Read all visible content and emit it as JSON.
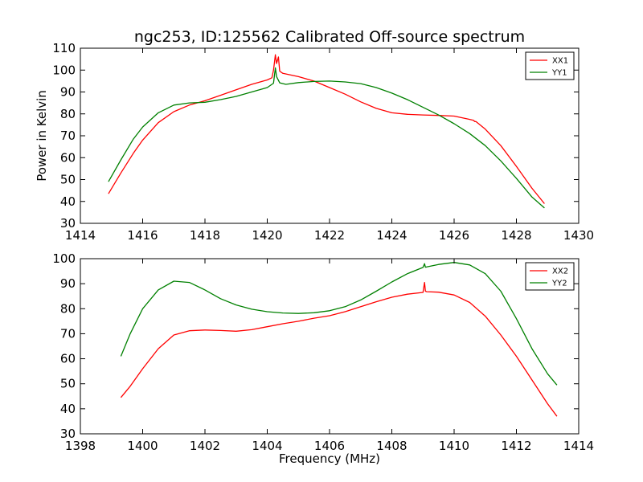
{
  "figure": {
    "title": "ngc253, ID:125562 Calibrated Off-source spectrum",
    "ylabel": "Power in Kelvin",
    "xlabel": "Frequency (MHz)"
  },
  "chart_data": [
    {
      "type": "line",
      "xlim": [
        1414,
        1430
      ],
      "ylim": [
        30,
        110
      ],
      "xticks": [
        1414,
        1416,
        1418,
        1420,
        1422,
        1424,
        1426,
        1428,
        1430
      ],
      "yticks": [
        30,
        40,
        50,
        60,
        70,
        80,
        90,
        100,
        110
      ],
      "legend_placement": "top-right",
      "grid": false,
      "series": [
        {
          "name": "XX1",
          "color": "#ff0000",
          "x": [
            1414.9,
            1415.3,
            1415.7,
            1416.0,
            1416.5,
            1417.0,
            1417.5,
            1418.0,
            1418.5,
            1419.0,
            1419.5,
            1420.0,
            1420.15,
            1420.2,
            1420.26,
            1420.3,
            1420.36,
            1420.4,
            1420.5,
            1421.0,
            1421.5,
            1422.0,
            1422.5,
            1423.0,
            1423.5,
            1424.0,
            1424.5,
            1425.0,
            1425.5,
            1426.0,
            1426.5,
            1426.63,
            1426.66,
            1426.7,
            1427.0,
            1427.5,
            1428.0,
            1428.5,
            1428.9
          ],
          "y": [
            43.5,
            53,
            62,
            68,
            76,
            81,
            84,
            86,
            88.5,
            91,
            93.5,
            95.5,
            96.5,
            100,
            107,
            103,
            106,
            99.5,
            98.5,
            97,
            95,
            92,
            89,
            85.5,
            82.5,
            80.5,
            79.8,
            79.5,
            79.3,
            79,
            77.5,
            77,
            76.5,
            76.5,
            73,
            65.5,
            56,
            46,
            39
          ]
        },
        {
          "name": "YY1",
          "color": "#008000",
          "x": [
            1414.9,
            1415.3,
            1415.7,
            1416.0,
            1416.5,
            1417.0,
            1417.5,
            1418.0,
            1418.5,
            1419.0,
            1419.5,
            1420.0,
            1420.2,
            1420.26,
            1420.3,
            1420.4,
            1420.6,
            1421.0,
            1421.5,
            1422.0,
            1422.5,
            1423.0,
            1423.5,
            1424.0,
            1424.5,
            1425.0,
            1425.5,
            1426.0,
            1426.5,
            1427.0,
            1427.5,
            1428.0,
            1428.5,
            1428.9
          ],
          "y": [
            49,
            59,
            68.5,
            74,
            80.5,
            84,
            85,
            85.3,
            86.5,
            88,
            90,
            92,
            94,
            101,
            97,
            94.2,
            93.5,
            94.3,
            94.8,
            95,
            94.6,
            93.8,
            92,
            89.5,
            86.5,
            83,
            79.5,
            75.5,
            71,
            65.5,
            58.5,
            50.5,
            42,
            37
          ]
        }
      ]
    },
    {
      "type": "line",
      "xlim": [
        1398,
        1414
      ],
      "ylim": [
        30,
        100
      ],
      "xticks": [
        1398,
        1400,
        1402,
        1404,
        1406,
        1408,
        1410,
        1412,
        1414
      ],
      "yticks": [
        30,
        40,
        50,
        60,
        70,
        80,
        90,
        100
      ],
      "legend_placement": "top-right",
      "grid": false,
      "series": [
        {
          "name": "XX2",
          "color": "#ff0000",
          "x": [
            1399.3,
            1399.6,
            1400.0,
            1400.5,
            1401.0,
            1401.5,
            1402.0,
            1402.5,
            1403.0,
            1403.5,
            1404.0,
            1404.5,
            1405.0,
            1405.5,
            1406.0,
            1406.5,
            1407.0,
            1407.5,
            1408.0,
            1408.5,
            1409.0,
            1409.05,
            1409.08,
            1409.12,
            1409.5,
            1410.0,
            1410.5,
            1411.0,
            1411.5,
            1412.0,
            1412.5,
            1413.0,
            1413.3
          ],
          "y": [
            44.5,
            49,
            56,
            64,
            69.5,
            71.2,
            71.5,
            71.3,
            71,
            71.6,
            72.8,
            74,
            75,
            76.2,
            77.2,
            78.8,
            80.8,
            82.8,
            84.6,
            85.8,
            86.5,
            90.5,
            87,
            86.8,
            86.6,
            85.5,
            82.5,
            77,
            69.5,
            61,
            51.5,
            42,
            37
          ]
        },
        {
          "name": "YY2",
          "color": "#008000",
          "x": [
            1399.3,
            1399.6,
            1400.0,
            1400.5,
            1401.0,
            1401.5,
            1402.0,
            1402.5,
            1403.0,
            1403.5,
            1404.0,
            1404.5,
            1405.0,
            1405.5,
            1406.0,
            1406.5,
            1407.0,
            1407.5,
            1408.0,
            1408.5,
            1409.0,
            1409.05,
            1409.08,
            1409.12,
            1409.5,
            1410.0,
            1410.5,
            1411.0,
            1411.5,
            1412.0,
            1412.5,
            1413.0,
            1413.3
          ],
          "y": [
            61,
            70,
            80,
            87.5,
            91,
            90.5,
            87.5,
            84,
            81.5,
            79.8,
            78.8,
            78.3,
            78.1,
            78.4,
            79.2,
            80.8,
            83.5,
            87,
            90.7,
            94,
            96.5,
            98,
            96.6,
            96.7,
            97.7,
            98.5,
            97.5,
            94,
            87,
            76,
            64,
            54,
            49.5
          ]
        }
      ]
    }
  ]
}
